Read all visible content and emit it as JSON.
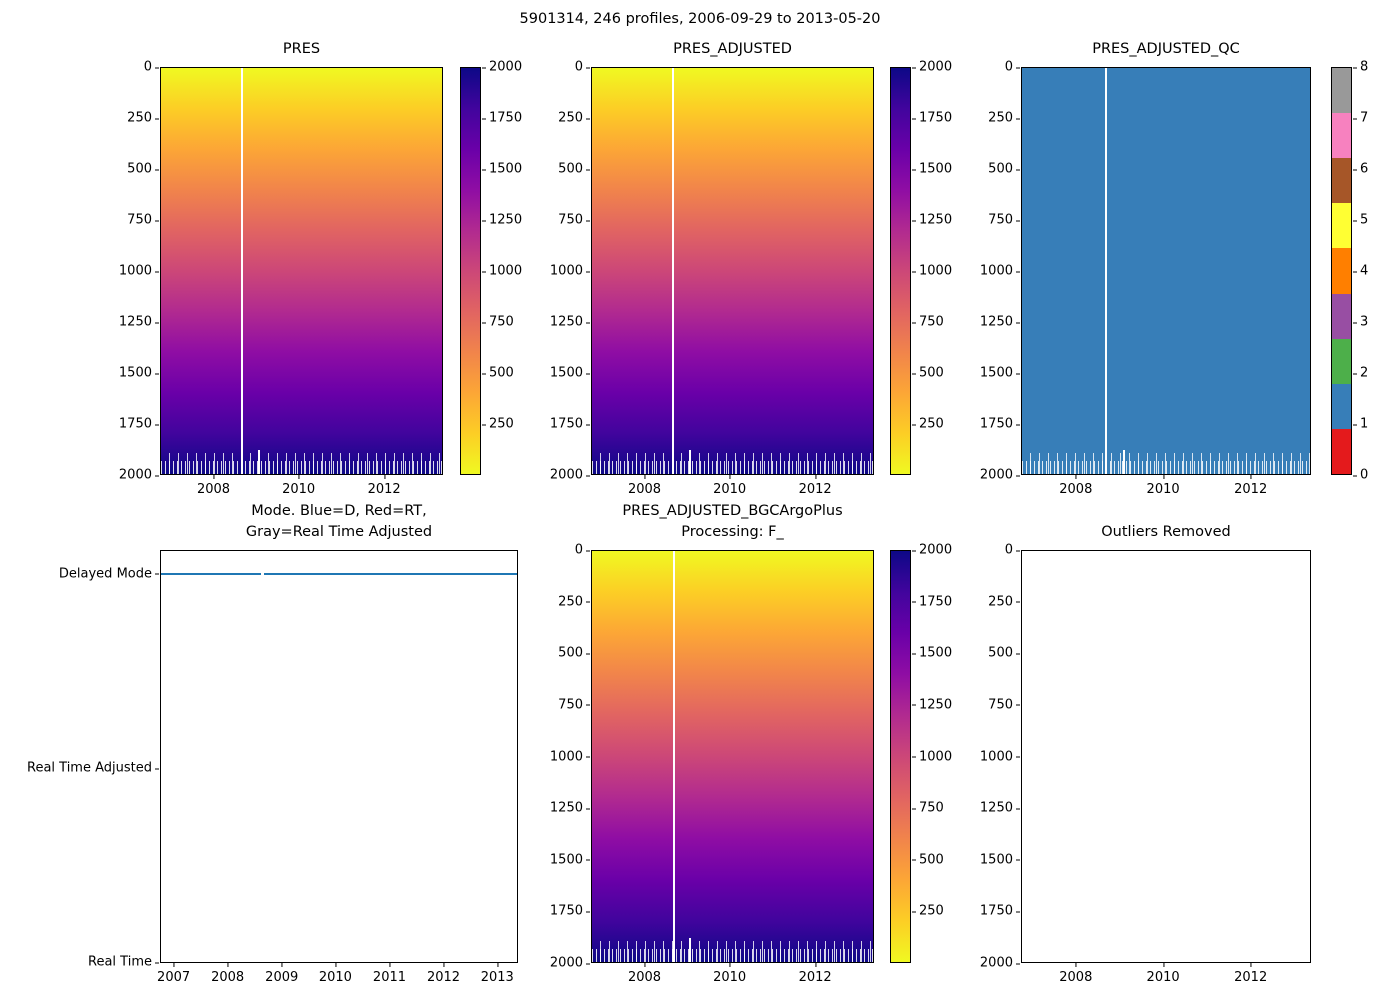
{
  "figure": {
    "title": "5901314, 246 profiles, 2006-09-29 to 2013-05-20"
  },
  "colors": {
    "plasma_stops": [
      "#f0f921",
      "#fcce25",
      "#fca636",
      "#f1844b",
      "#e16462",
      "#cc4778",
      "#b12a90",
      "#8f0da4",
      "#6a00a8",
      "#41049d",
      "#0d0887"
    ],
    "qc_fill": "#377eb8",
    "mode_line": "#1f77b4",
    "spine": "#000000"
  },
  "axes": {
    "pressure_yticks": [
      {
        "label": "0",
        "y": 0
      },
      {
        "label": "250",
        "y": 12.5
      },
      {
        "label": "500",
        "y": 25
      },
      {
        "label": "750",
        "y": 37.5
      },
      {
        "label": "1000",
        "y": 50
      },
      {
        "label": "1250",
        "y": 62.5
      },
      {
        "label": "1500",
        "y": 75
      },
      {
        "label": "1750",
        "y": 87.5
      },
      {
        "label": "2000",
        "y": 100
      }
    ],
    "year_xticks_3": [
      {
        "label": "2008",
        "x": 18.9
      },
      {
        "label": "2010",
        "x": 49.0
      },
      {
        "label": "2012",
        "x": 79.2
      }
    ],
    "year_xticks_7": [
      {
        "label": "2007",
        "x": 3.8
      },
      {
        "label": "2008",
        "x": 18.9
      },
      {
        "label": "2009",
        "x": 34.0
      },
      {
        "label": "2010",
        "x": 49.0
      },
      {
        "label": "2011",
        "x": 64.1
      },
      {
        "label": "2012",
        "x": 79.2
      },
      {
        "label": "2013",
        "x": 94.2
      }
    ],
    "mode_yticks": [
      {
        "label": "Delayed Mode",
        "y": 5.7
      },
      {
        "label": "Real Time Adjusted",
        "y": 52.8
      },
      {
        "label": "Real Time",
        "y": 99.8
      }
    ]
  },
  "colorbars": {
    "pressure_ticks": [
      {
        "label": "2000",
        "y": 0
      },
      {
        "label": "1750",
        "y": 12.5
      },
      {
        "label": "1500",
        "y": 25
      },
      {
        "label": "1250",
        "y": 37.5
      },
      {
        "label": "1000",
        "y": 50
      },
      {
        "label": "750",
        "y": 62.5
      },
      {
        "label": "500",
        "y": 75
      },
      {
        "label": "250",
        "y": 87.5
      }
    ],
    "qc_ticks": [
      {
        "label": "8",
        "y": 0
      },
      {
        "label": "7",
        "y": 12.5
      },
      {
        "label": "6",
        "y": 25
      },
      {
        "label": "5",
        "y": 37.5
      },
      {
        "label": "4",
        "y": 50
      },
      {
        "label": "3",
        "y": 62.5
      },
      {
        "label": "2",
        "y": 75
      },
      {
        "label": "1",
        "y": 87.5
      },
      {
        "label": "0",
        "y": 100
      }
    ],
    "qc_segment_colors": [
      "#999999",
      "#f781bf",
      "#a65628",
      "#ffff33",
      "#ff7f00",
      "#984ea3",
      "#4daf4a",
      "#377eb8",
      "#e41a1c"
    ]
  },
  "plots": {
    "pres": {
      "title": "PRES"
    },
    "pres_adjusted": {
      "title": "PRES_ADJUSTED"
    },
    "pres_adjusted_qc": {
      "title": "PRES_ADJUSTED_QC"
    },
    "mode": {
      "title": "Mode. Blue=D, Red=RT,\nGray=Real Time Adjusted"
    },
    "bgc": {
      "title": "PRES_ADJUSTED_BGCArgoPlus\nProcessing: F_"
    },
    "outliers": {
      "title": "Outliers Removed"
    }
  },
  "chart_data": [
    {
      "type": "heatmap",
      "title": "PRES",
      "x_range": [
        "2006-09-29",
        "2013-05-20"
      ],
      "xticks": [
        "2008",
        "2010",
        "2012"
      ],
      "ylim": [
        2000,
        0
      ],
      "yticks": [
        0,
        250,
        500,
        750,
        1000,
        1250,
        1500,
        1750,
        2000
      ],
      "n_profiles": 246,
      "values_summary": "pressure increases linearly with depth level from ~0 at the top to ~2000 at the bottom for all 246 profiles",
      "colorbar": {
        "range": [
          0,
          2000
        ],
        "ticks": [
          250,
          500,
          750,
          1000,
          1250,
          1500,
          1750,
          2000
        ]
      },
      "colormap": "plasma reversed (yellow = low, dark navy = high)",
      "annotations": [
        "narrow white vertical gap near 2008.6 where profiles are missing",
        "ragged white comb along the bottom edge where maximum profile depth varies"
      ]
    },
    {
      "type": "heatmap",
      "title": "PRES_ADJUSTED",
      "x_range": [
        "2006-09-29",
        "2013-05-20"
      ],
      "xticks": [
        "2008",
        "2010",
        "2012"
      ],
      "ylim": [
        2000,
        0
      ],
      "yticks": [
        0,
        250,
        500,
        750,
        1000,
        1250,
        1500,
        1750,
        2000
      ],
      "values_summary": "adjusted pressure, visually identical to PRES: ~0 at top to ~2000 at bottom",
      "colorbar": {
        "range": [
          0,
          2000
        ],
        "ticks": [
          250,
          500,
          750,
          1000,
          1250,
          1500,
          1750,
          2000
        ]
      },
      "colormap": "plasma reversed"
    },
    {
      "type": "heatmap",
      "title": "PRES_ADJUSTED_QC",
      "x_range": [
        "2006-09-29",
        "2013-05-20"
      ],
      "xticks": [
        "2008",
        "2010",
        "2012"
      ],
      "ylim": [
        2000,
        0
      ],
      "yticks": [
        0,
        250,
        500,
        750,
        1000,
        1250,
        1500,
        1750,
        2000
      ],
      "values_summary": "QC flag = 1 (blue) for essentially every sample",
      "colorbar": {
        "ticks": [
          0,
          1,
          2,
          3,
          4,
          5,
          6,
          7,
          8
        ],
        "colors_top_to_bottom": [
          "#999999",
          "#f781bf",
          "#a65628",
          "#ffff33",
          "#ff7f00",
          "#984ea3",
          "#4daf4a",
          "#377eb8",
          "#e41a1c"
        ]
      }
    },
    {
      "type": "line",
      "title": "Mode. Blue=D, Red=RT, Gray=Real Time Adjusted",
      "xticks": [
        2007,
        2008,
        2009,
        2010,
        2011,
        2012,
        2013
      ],
      "y_categories": [
        "Real Time",
        "Real Time Adjusted",
        "Delayed Mode"
      ],
      "series": [
        {
          "name": "mode",
          "color": "#1f77b4",
          "values_summary": "constant 'Delayed Mode' across the whole record 2006-09 to 2013-05"
        }
      ]
    },
    {
      "type": "heatmap",
      "title": "PRES_ADJUSTED_BGCArgoPlus Processing: F_",
      "x_range": [
        "2006-09-29",
        "2013-05-20"
      ],
      "xticks": [
        "2008",
        "2010",
        "2012"
      ],
      "ylim": [
        2000,
        0
      ],
      "yticks": [
        0,
        250,
        500,
        750,
        1000,
        1250,
        1500,
        1750,
        2000
      ],
      "values_summary": "same pressure field as PRES_ADJUSTED: ~0 at top to ~2000 at bottom",
      "colorbar": {
        "range": [
          0,
          2000
        ],
        "ticks": [
          250,
          500,
          750,
          1000,
          1250,
          1500,
          1750,
          2000
        ]
      },
      "colormap": "plasma reversed"
    },
    {
      "type": "empty",
      "title": "Outliers Removed",
      "xticks": [
        "2008",
        "2010",
        "2012"
      ],
      "ylim": [
        2000,
        0
      ],
      "yticks": [
        0,
        250,
        500,
        750,
        1000,
        1250,
        1500,
        1750,
        2000
      ],
      "values_summary": "empty axes - no outliers plotted"
    }
  ]
}
